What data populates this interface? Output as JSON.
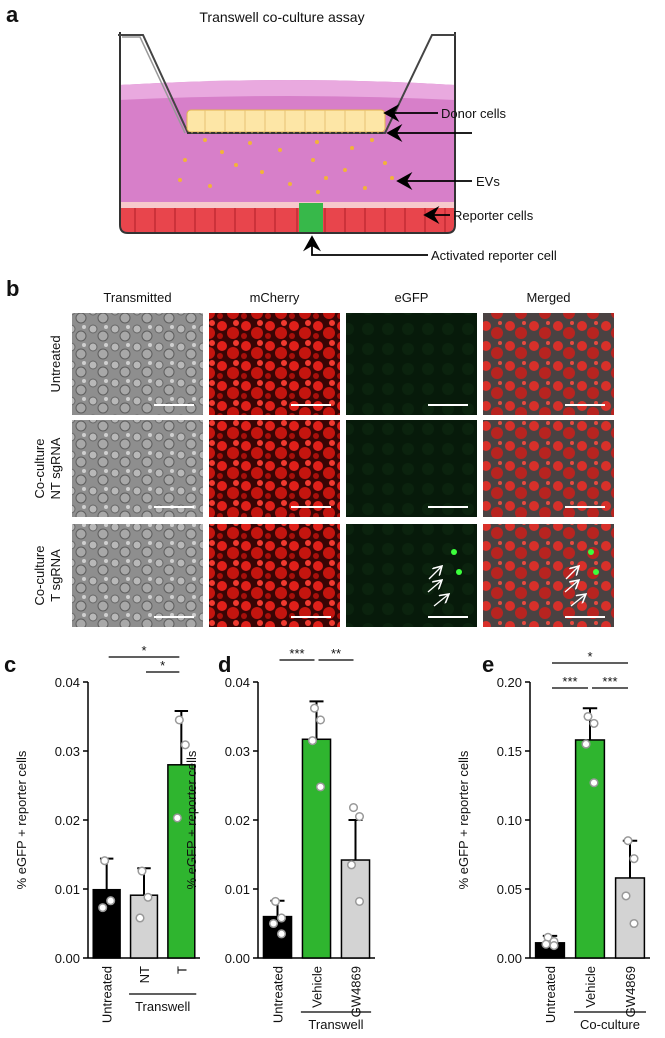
{
  "figure": {
    "panel_labels": [
      "a",
      "b",
      "c",
      "d",
      "e"
    ],
    "diagram": {
      "title": "Transwell co-culture assay",
      "labels": [
        "Donor cells",
        "EVs",
        "Reporter cells",
        "Activated reporter cell"
      ]
    },
    "microscopy": {
      "columns": [
        "Transmitted",
        "mCherry",
        "eGFP",
        "Merged"
      ],
      "rows": [
        [
          "Untreated"
        ],
        [
          "Co-culture",
          "NT sgRNA"
        ],
        [
          "Co-culture",
          "T sgRNA"
        ]
      ]
    }
  },
  "chart_data": [
    {
      "type": "bar",
      "y_label": "% eGFP + reporter cells",
      "categories": [
        "Untreated",
        "NT",
        "T"
      ],
      "colors": [
        "#000000",
        "#d3d3d3",
        "#2fb52f"
      ],
      "values": [
        0.0099,
        0.0091,
        0.028
      ],
      "errors": [
        0.0045,
        0.0039,
        0.0078
      ],
      "points": [
        [
          0.0141,
          0.0083,
          0.0073
        ],
        [
          0.0126,
          0.0088,
          0.0058
        ],
        [
          0.0345,
          0.0309,
          0.0203
        ]
      ],
      "ylim": [
        0,
        0.04
      ],
      "yticks": [
        {
          "value": 0,
          "label": "0.00"
        },
        {
          "value": 0.01,
          "label": "0.01"
        },
        {
          "value": 0.02,
          "label": "0.02"
        },
        {
          "value": 0.03,
          "label": "0.03"
        },
        {
          "value": 0.04,
          "label": "0.04"
        }
      ],
      "annotations": [
        {
          "label": "*",
          "from": 0,
          "to": 2
        },
        {
          "label": "*",
          "from": 1,
          "to": 2
        }
      ],
      "group": {
        "label": "Transwell",
        "from": 1,
        "to": 2
      }
    },
    {
      "type": "bar",
      "y_label": "% eGFP + reporter cells",
      "categories": [
        "Untreated",
        "Vehicle",
        "GW4869"
      ],
      "colors": [
        "#000000",
        "#2fb52f",
        "#d3d3d3"
      ],
      "values": [
        0.006,
        0.0317,
        0.0142
      ],
      "errors": [
        0.0023,
        0.0055,
        0.0058
      ],
      "points": [
        [
          0.0082,
          0.0058,
          0.005,
          0.0035
        ],
        [
          0.0362,
          0.0345,
          0.0315,
          0.0248
        ],
        [
          0.0218,
          0.0205,
          0.0135,
          0.0082
        ]
      ],
      "ylim": [
        0,
        0.04
      ],
      "yticks": [
        {
          "value": 0,
          "label": "0.00"
        },
        {
          "value": 0.01,
          "label": "0.01"
        },
        {
          "value": 0.02,
          "label": "0.02"
        },
        {
          "value": 0.03,
          "label": "0.03"
        },
        {
          "value": 0.04,
          "label": "0.04"
        }
      ],
      "annotations": [
        {
          "label": "***",
          "from": 0,
          "to": 1
        },
        {
          "label": "**",
          "from": 1,
          "to": 2
        }
      ],
      "group": {
        "label": "Transwell",
        "from": 1,
        "to": 2
      }
    },
    {
      "type": "bar",
      "y_label": "% eGFP + reporter cells",
      "categories": [
        "Untreated",
        "Vehicle",
        "GW4869"
      ],
      "colors": [
        "#000000",
        "#2fb52f",
        "#d3d3d3"
      ],
      "values": [
        0.011,
        0.158,
        0.058
      ],
      "errors": [
        0.005,
        0.023,
        0.027
      ],
      "points": [
        [
          0.015,
          0.012,
          0.01,
          0.009
        ],
        [
          0.175,
          0.17,
          0.155,
          0.127
        ],
        [
          0.085,
          0.072,
          0.045,
          0.025
        ]
      ],
      "ylim": [
        0,
        0.2
      ],
      "yticks": [
        {
          "value": 0,
          "label": "0.00"
        },
        {
          "value": 0.05,
          "label": "0.05"
        },
        {
          "value": 0.1,
          "label": "0.10"
        },
        {
          "value": 0.15,
          "label": "0.15"
        },
        {
          "value": 0.2,
          "label": "0.20"
        }
      ],
      "annotations": [
        {
          "label": "*",
          "from": 0,
          "to": 2
        },
        {
          "label": "***",
          "from": 0,
          "to": 1
        },
        {
          "label": "***",
          "from": 1,
          "to": 2
        }
      ],
      "group": {
        "label": "Co-culture",
        "from": 1,
        "to": 2
      }
    }
  ]
}
